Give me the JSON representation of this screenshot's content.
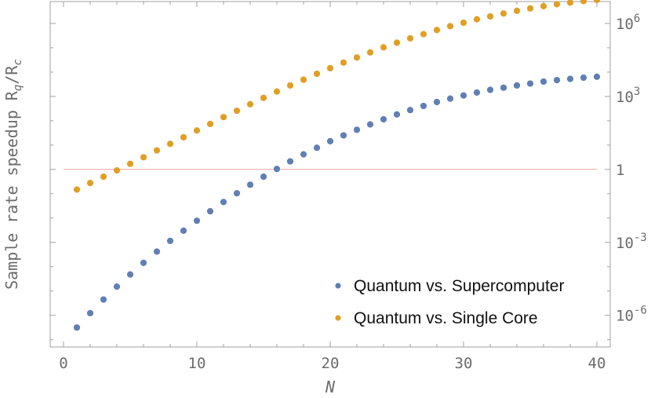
{
  "chart_data": {
    "type": "scatter",
    "xlabel": "N",
    "ylabel": "Sample rate speedup R",
    "ylabel_sub1": "q",
    "ylabel_sep": "/R",
    "ylabel_sub2": "c",
    "xlim": [
      -1,
      41
    ],
    "ylim_log10": [
      -7.3,
      6.9
    ],
    "y_scale": "log",
    "x_ticks": [
      0,
      10,
      20,
      30,
      40
    ],
    "x_tick_labels": [
      "0",
      "10",
      "20",
      "30",
      "40"
    ],
    "y_ticks_log10": [
      -6,
      -3,
      0,
      3,
      6
    ],
    "y_tick_base": "10",
    "y_tick_exponents": [
      "-6",
      "-3",
      "",
      "3",
      "6"
    ],
    "y_tick_plain": [
      "",
      "",
      "1",
      "",
      ""
    ],
    "reference_line_y": 1,
    "legend_position": "bottom-right",
    "colors": {
      "supercomputer": "#5f7fb5",
      "single_core": "#e09f24",
      "reference": "#f2a0a6",
      "frame": "#a0a0a0"
    },
    "series": [
      {
        "name": "Quantum vs. Supercomputer",
        "color": "#5f7fb5",
        "x": [
          1,
          2,
          3,
          4,
          5,
          6,
          7,
          8,
          9,
          10,
          11,
          12,
          13,
          14,
          15,
          16,
          17,
          18,
          19,
          20,
          21,
          22,
          23,
          24,
          25,
          26,
          27,
          28,
          29,
          30,
          31,
          32,
          33,
          34,
          35,
          36,
          37,
          38,
          39,
          40
        ],
        "log10_y": [
          -6.5,
          -5.91,
          -5.35,
          -4.82,
          -4.32,
          -3.84,
          -3.38,
          -2.94,
          -2.52,
          -2.11,
          -1.72,
          -1.34,
          -0.98,
          -0.63,
          -0.3,
          0.02,
          0.33,
          0.62,
          0.89,
          1.16,
          1.4,
          1.63,
          1.85,
          2.06,
          2.26,
          2.44,
          2.61,
          2.77,
          2.91,
          3.04,
          3.16,
          3.27,
          3.36,
          3.45,
          3.53,
          3.61,
          3.67,
          3.72,
          3.77,
          3.81
        ]
      },
      {
        "name": "Quantum vs. Single Core",
        "color": "#e09f24",
        "x": [
          1,
          2,
          3,
          4,
          5,
          6,
          7,
          8,
          9,
          10,
          11,
          12,
          13,
          14,
          15,
          16,
          17,
          18,
          19,
          20,
          21,
          22,
          23,
          24,
          25,
          26,
          27,
          28,
          29,
          30,
          31,
          32,
          33,
          34,
          35,
          36,
          37,
          38,
          39,
          40
        ],
        "log10_y": [
          -0.83,
          -0.56,
          -0.3,
          -0.04,
          0.23,
          0.5,
          0.78,
          1.05,
          1.32,
          1.6,
          1.87,
          2.15,
          2.41,
          2.68,
          2.94,
          3.2,
          3.45,
          3.69,
          3.93,
          4.16,
          4.39,
          4.6,
          4.81,
          5.02,
          5.21,
          5.39,
          5.56,
          5.73,
          5.89,
          6.03,
          6.17,
          6.29,
          6.41,
          6.52,
          6.62,
          6.71,
          6.79,
          6.86,
          6.92,
          6.97
        ]
      }
    ]
  }
}
